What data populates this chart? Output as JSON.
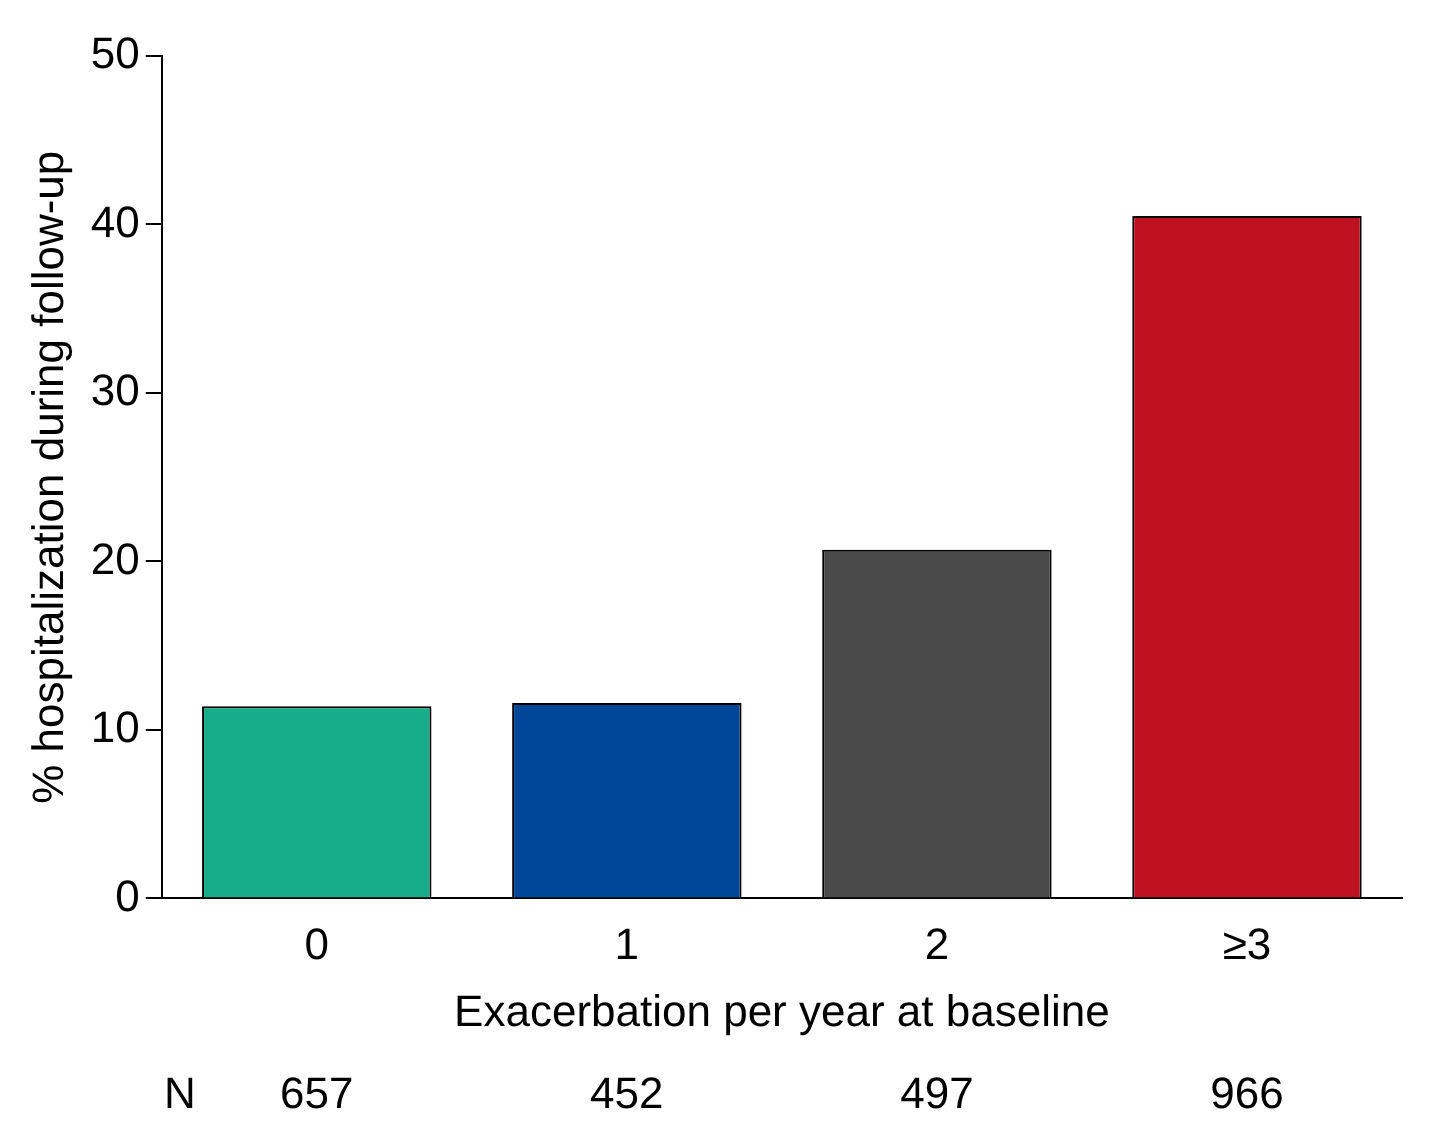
{
  "chart_data": {
    "type": "bar",
    "xlabel": "Exacerbation per year at baseline",
    "ylabel": "% hospitalization during follow-up",
    "categories": [
      "0",
      "1",
      "2",
      "≥3"
    ],
    "values": [
      11.4,
      11.6,
      20.7,
      40.5
    ],
    "colors": [
      "#17ad8a",
      "#00479a",
      "#4a4a4a",
      "#be1220"
    ],
    "ylim": [
      0,
      50
    ],
    "yticks": [
      0,
      10,
      20,
      30,
      40,
      50
    ],
    "grid": false,
    "legend": false,
    "annotations": [
      "N",
      "657",
      "452",
      "497",
      "966"
    ]
  }
}
